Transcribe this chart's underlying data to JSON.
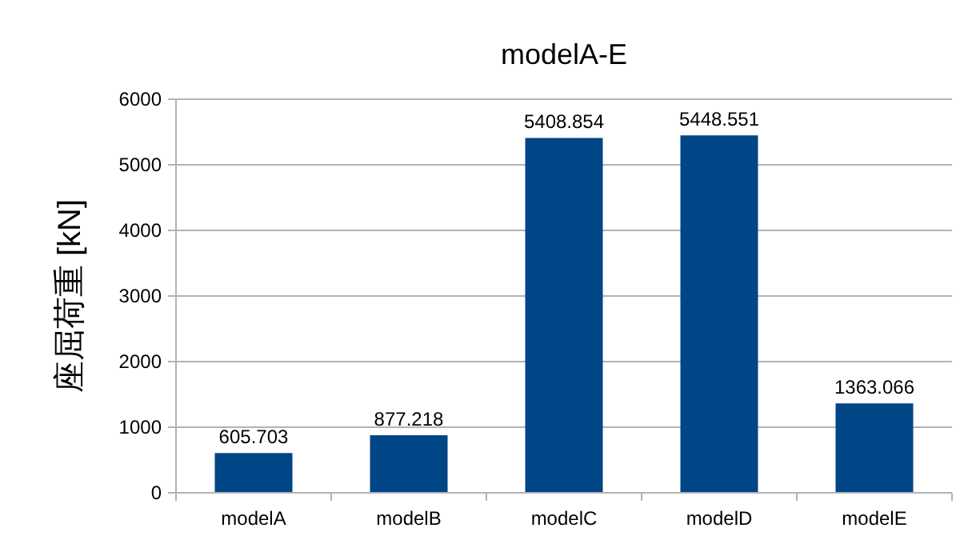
{
  "chart_data": {
    "type": "bar",
    "title": "modelA-E",
    "ylabel": "座屈荷重 [kN]",
    "categories": [
      "modelA",
      "modelB",
      "modelC",
      "modelD",
      "modelE"
    ],
    "values": [
      605.703,
      877.218,
      5408.854,
      5448.551,
      1363.066
    ],
    "color": "#004586",
    "ylim": [
      0,
      6000
    ],
    "yticks": [
      0,
      1000,
      2000,
      3000,
      4000,
      5000,
      6000
    ],
    "grid": "y",
    "data_labels": true
  }
}
